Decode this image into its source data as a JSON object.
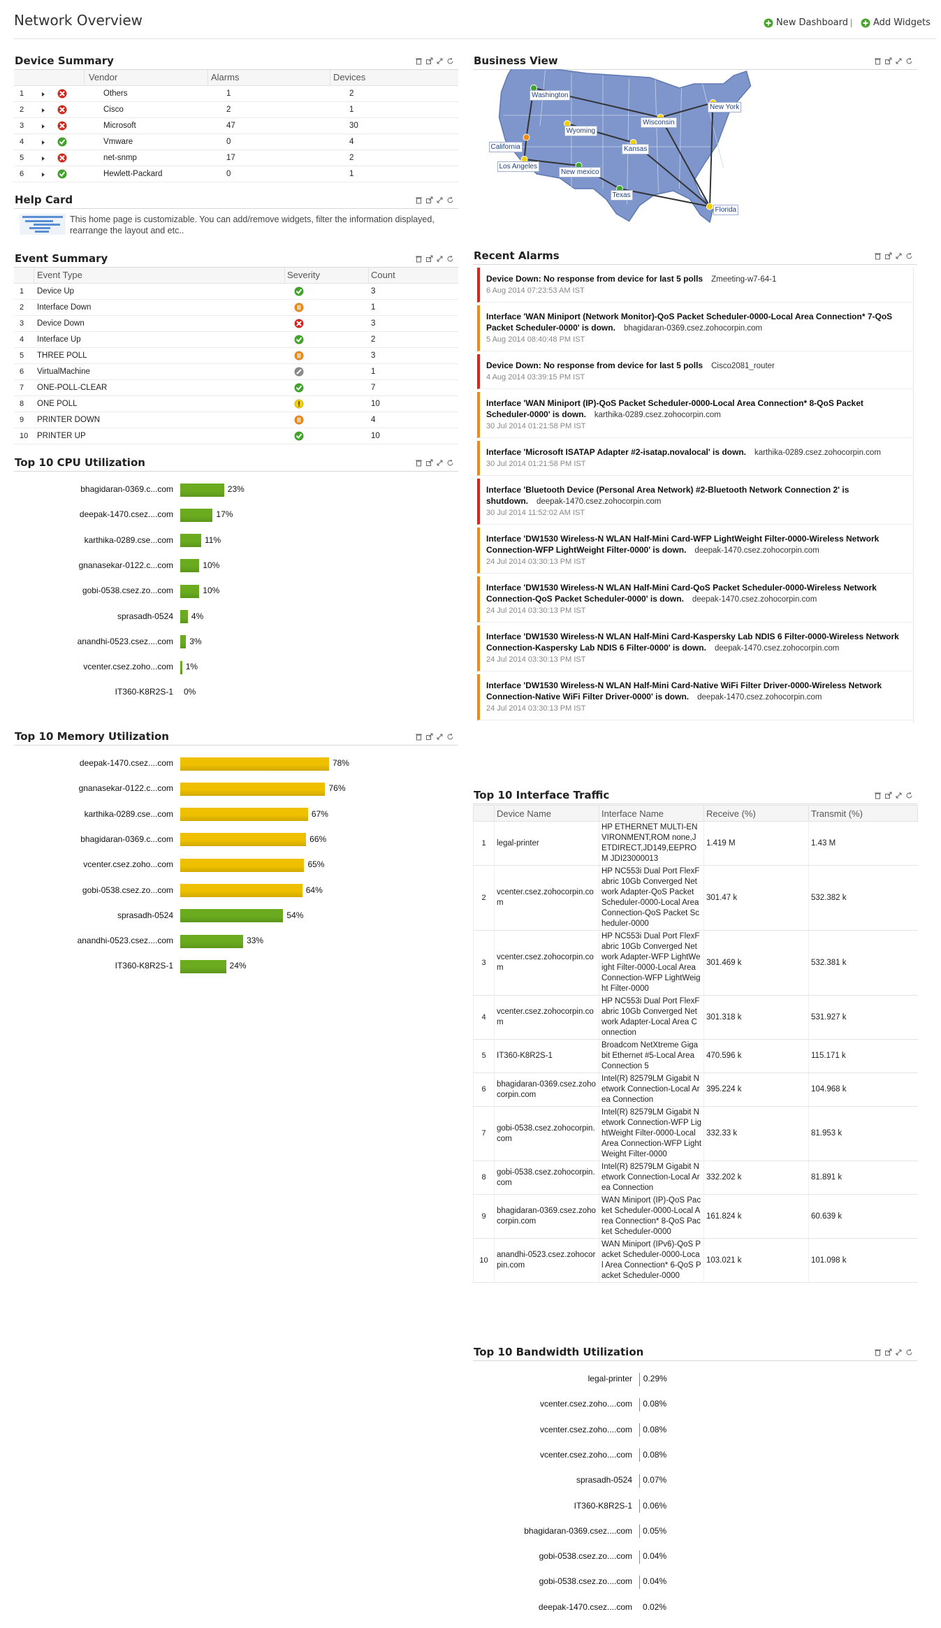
{
  "header": {
    "title": "Network Overview",
    "links": [
      "New Dashboard",
      "Add Widgets"
    ]
  },
  "device_summary": {
    "title": "Device Summary",
    "columns": [
      "Vendor",
      "Alarms",
      "Devices"
    ],
    "rows": [
      {
        "index": 1,
        "status": "critical",
        "vendor": "Others",
        "alarms": 1,
        "devices": 2
      },
      {
        "index": 2,
        "status": "critical",
        "vendor": "Cisco",
        "alarms": 2,
        "devices": 1
      },
      {
        "index": 3,
        "status": "critical",
        "vendor": "Microsoft",
        "alarms": 47,
        "devices": 30
      },
      {
        "index": 4,
        "status": "clear",
        "vendor": "Vmware",
        "alarms": 0,
        "devices": 4
      },
      {
        "index": 5,
        "status": "critical",
        "vendor": "net-snmp",
        "alarms": 17,
        "devices": 2
      },
      {
        "index": 6,
        "status": "clear",
        "vendor": "Hewlett-Packard",
        "alarms": 0,
        "devices": 1
      }
    ]
  },
  "help_card": {
    "title": "Help Card",
    "text": "This home page is customizable. You can add/remove widgets, filter the information displayed, rearrange the layout and etc.."
  },
  "event_summary": {
    "title": "Event Summary",
    "columns": [
      "Event Type",
      "Severity",
      "Count"
    ],
    "rows": [
      {
        "index": 1,
        "event_type": "Device Up",
        "severity": "clear",
        "count": 3
      },
      {
        "index": 2,
        "event_type": "Interface Down",
        "severity": "major",
        "count": 1
      },
      {
        "index": 3,
        "event_type": "Device Down",
        "severity": "critical",
        "count": 3
      },
      {
        "index": 4,
        "event_type": "Interface Up",
        "severity": "clear",
        "count": 2
      },
      {
        "index": 5,
        "event_type": "THREE POLL",
        "severity": "major",
        "count": 3
      },
      {
        "index": 6,
        "event_type": "VirtualMachine",
        "severity": "unknown",
        "count": 1
      },
      {
        "index": 7,
        "event_type": "ONE-POLL-CLEAR",
        "severity": "clear",
        "count": 7
      },
      {
        "index": 8,
        "event_type": "ONE POLL",
        "severity": "attention",
        "count": 10
      },
      {
        "index": 9,
        "event_type": "PRINTER DOWN",
        "severity": "major",
        "count": 4
      },
      {
        "index": 10,
        "event_type": "PRINTER UP",
        "severity": "clear",
        "count": 10
      }
    ]
  },
  "cpu_utilization": {
    "type": "bar",
    "title": "Top 10 CPU Utilization",
    "categories": [
      "bhagidaran-0369.c...com",
      "deepak-1470.csez....com",
      "karthika-0289.cse...com",
      "gnanasekar-0122.c...com",
      "gobi-0538.csez.zo...com",
      "sprasadh-0524",
      "anandhi-0523.csez....com",
      "vcenter.csez.zoho...com",
      "IT360-K8R2S-1"
    ],
    "values": [
      23,
      17,
      11,
      10,
      10,
      4,
      3,
      1,
      0
    ],
    "value_labels": [
      "23%",
      "17%",
      "11%",
      "10%",
      "10%",
      "4%",
      "3%",
      "1%",
      "0%"
    ],
    "color": "#6aab1f"
  },
  "memory_utilization": {
    "type": "bar",
    "title": "Top 10 Memory Utilization",
    "categories": [
      "deepak-1470.csez....com",
      "gnanasekar-0122.c...com",
      "karthika-0289.cse...com",
      "bhagidaran-0369.c...com",
      "vcenter.csez.zoho...com",
      "gobi-0538.csez.zo...com",
      "sprasadh-0524",
      "anandhi-0523.csez....com",
      "IT360-K8R2S-1"
    ],
    "values": [
      78,
      76,
      67,
      66,
      65,
      64,
      54,
      33,
      24
    ],
    "value_labels": [
      "78%",
      "76%",
      "67%",
      "66%",
      "65%",
      "64%",
      "54%",
      "33%",
      "24%"
    ],
    "colors": [
      "#eec000",
      "#eec000",
      "#eec000",
      "#eec000",
      "#eec000",
      "#eec000",
      "#6aab1f",
      "#6aab1f",
      "#6aab1f"
    ]
  },
  "business_view": {
    "title": "Business View",
    "locations": [
      {
        "name": "Washington",
        "status": "clear"
      },
      {
        "name": "California",
        "status": "major"
      },
      {
        "name": "Wyoming",
        "status": "attention"
      },
      {
        "name": "Los Angeles",
        "status": "attention"
      },
      {
        "name": "New mexico",
        "status": "clear"
      },
      {
        "name": "Kansas",
        "status": "attention"
      },
      {
        "name": "Wisconsin",
        "status": "attention"
      },
      {
        "name": "New York",
        "status": "attention"
      },
      {
        "name": "Texas",
        "status": "clear"
      },
      {
        "name": "Florida",
        "status": "attention"
      }
    ]
  },
  "recent_alarms": {
    "title": "Recent Alarms",
    "items": [
      {
        "severity": "critical",
        "message": "Device Down: No response from device for last 5 polls",
        "source": "Zmeeting-w7-64-1",
        "time": "6 Aug 2014 07:23:53 AM IST"
      },
      {
        "severity": "major",
        "message": "Interface 'WAN Miniport (Network Monitor)-QoS Packet Scheduler-0000-Local Area Connection* 7-QoS Packet Scheduler-0000' is down.",
        "source": "bhagidaran-0369.csez.zohocorpin.com",
        "time": "5 Aug 2014 08:40:48 PM IST"
      },
      {
        "severity": "critical",
        "message": "Device Down: No response from device for last 5 polls",
        "source": "Cisco2081_router",
        "time": "4 Aug 2014 03:39:15 PM IST"
      },
      {
        "severity": "major",
        "message": "Interface 'WAN Miniport (IP)-QoS Packet Scheduler-0000-Local Area Connection* 8-QoS Packet Scheduler-0000' is down.",
        "source": "karthika-0289.csez.zohocorpin.com",
        "time": "30 Jul 2014 01:21:58 PM IST"
      },
      {
        "severity": "major",
        "message": "Interface 'Microsoft ISATAP Adapter #2-isatap.novalocal' is down.",
        "source": "karthika-0289.csez.zohocorpin.com",
        "time": "30 Jul 2014 01:21:58 PM IST"
      },
      {
        "severity": "critical",
        "message": "Interface 'Bluetooth Device (Personal Area Network) #2-Bluetooth Network Connection 2' is shutdown.",
        "source": "deepak-1470.csez.zohocorpin.com",
        "time": "30 Jul 2014 11:52:02 AM IST"
      },
      {
        "severity": "major",
        "message": "Interface 'DW1530 Wireless-N WLAN Half-Mini Card-WFP LightWeight Filter-0000-Wireless Network Connection-WFP LightWeight Filter-0000' is down.",
        "source": "deepak-1470.csez.zohocorpin.com",
        "time": "24 Jul 2014 03:30:13 PM IST"
      },
      {
        "severity": "major",
        "message": "Interface 'DW1530 Wireless-N WLAN Half-Mini Card-QoS Packet Scheduler-0000-Wireless Network Connection-QoS Packet Scheduler-0000' is down.",
        "source": "deepak-1470.csez.zohocorpin.com",
        "time": "24 Jul 2014 03:30:13 PM IST"
      },
      {
        "severity": "major",
        "message": "Interface 'DW1530 Wireless-N WLAN Half-Mini Card-Kaspersky Lab NDIS 6 Filter-0000-Wireless Network Connection-Kaspersky Lab NDIS 6 Filter-0000' is down.",
        "source": "deepak-1470.csez.zohocorpin.com",
        "time": "24 Jul 2014 03:30:13 PM IST"
      },
      {
        "severity": "major",
        "message": "Interface 'DW1530 Wireless-N WLAN Half-Mini Card-Native WiFi Filter Driver-0000-Wireless Network Connection-Native WiFi Filter Driver-0000' is down.",
        "source": "deepak-1470.csez.zohocorpin.com",
        "time": "24 Jul 2014 03:30:13 PM IST"
      }
    ]
  },
  "interface_traffic": {
    "title": "Top 10 Interface Traffic",
    "columns": [
      "Device Name",
      "Interface Name",
      "Receive (%)",
      "Transmit (%)"
    ],
    "rows": [
      {
        "index": 1,
        "device": "legal-printer",
        "interface": "HP ETHERNET MULTI-ENVIRONMENT,ROM none,JETDIRECT,JD149,EEPROM JDI23000013",
        "receive": "1.419 M",
        "transmit": "1.43 M"
      },
      {
        "index": 2,
        "device": "vcenter.csez.zohocorpin.com",
        "interface": "HP NC553i Dual Port FlexFabric 10Gb Converged Network Adapter-QoS Packet Scheduler-0000-Local Area Connection-QoS Packet Scheduler-0000",
        "receive": "301.47 k",
        "transmit": "532.382 k"
      },
      {
        "index": 3,
        "device": "vcenter.csez.zohocorpin.com",
        "interface": "HP NC553i Dual Port FlexFabric 10Gb Converged Network Adapter-WFP LightWeight Filter-0000-Local Area Connection-WFP LightWeight Filter-0000",
        "receive": "301.469 k",
        "transmit": "532.381 k"
      },
      {
        "index": 4,
        "device": "vcenter.csez.zohocorpin.com",
        "interface": "HP NC553i Dual Port FlexFabric 10Gb Converged Network Adapter-Local Area Connection",
        "receive": "301.318 k",
        "transmit": "531.927 k"
      },
      {
        "index": 5,
        "device": "IT360-K8R2S-1",
        "interface": "Broadcom NetXtreme Gigabit Ethernet #5-Local Area Connection 5",
        "receive": "470.596 k",
        "transmit": "115.171 k"
      },
      {
        "index": 6,
        "device": "bhagidaran-0369.csez.zohocorpin.com",
        "interface": "Intel(R) 82579LM Gigabit Network Connection-Local Area Connection",
        "receive": "395.224 k",
        "transmit": "104.968 k"
      },
      {
        "index": 7,
        "device": "gobi-0538.csez.zohocorpin.com",
        "interface": "Intel(R) 82579LM Gigabit Network Connection-WFP LightWeight Filter-0000-Local Area Connection-WFP LightWeight Filter-0000",
        "receive": "332.33 k",
        "transmit": "81.953 k"
      },
      {
        "index": 8,
        "device": "gobi-0538.csez.zohocorpin.com",
        "interface": "Intel(R) 82579LM Gigabit Network Connection-Local Area Connection",
        "receive": "332.202 k",
        "transmit": "81.891 k"
      },
      {
        "index": 9,
        "device": "bhagidaran-0369.csez.zohocorpin.com",
        "interface": "WAN Miniport (IP)-QoS Packet Scheduler-0000-Local Area Connection* 8-QoS Packet Scheduler-0000",
        "receive": "161.824 k",
        "transmit": "60.639 k"
      },
      {
        "index": 10,
        "device": "anandhi-0523.csez.zohocorpin.com",
        "interface": "WAN Miniport (IPv6)-QoS Packet Scheduler-0000-Local Area Connection* 6-QoS Packet Scheduler-0000",
        "receive": "103.021 k",
        "transmit": "101.098 k"
      }
    ]
  },
  "bandwidth_utilization": {
    "type": "bar",
    "title": "Top 10 Bandwidth Utilization",
    "categories": [
      "legal-printer",
      "vcenter.csez.zoho....com",
      "vcenter.csez.zoho....com",
      "vcenter.csez.zoho....com",
      "sprasadh-0524",
      "IT360-K8R2S-1",
      "bhagidaran-0369.csez....com",
      "gobi-0538.csez.zo....com",
      "gobi-0538.csez.zo....com",
      "deepak-1470.csez....com"
    ],
    "values": [
      0.29,
      0.08,
      0.08,
      0.08,
      0.07,
      0.06,
      0.05,
      0.04,
      0.04,
      0.02
    ],
    "value_labels": [
      "0.29%",
      "0.08%",
      "0.08%",
      "0.08%",
      "0.07%",
      "0.06%",
      "0.05%",
      "0.04%",
      "0.04%",
      "0.02%"
    ],
    "color": "#6aab1f"
  }
}
